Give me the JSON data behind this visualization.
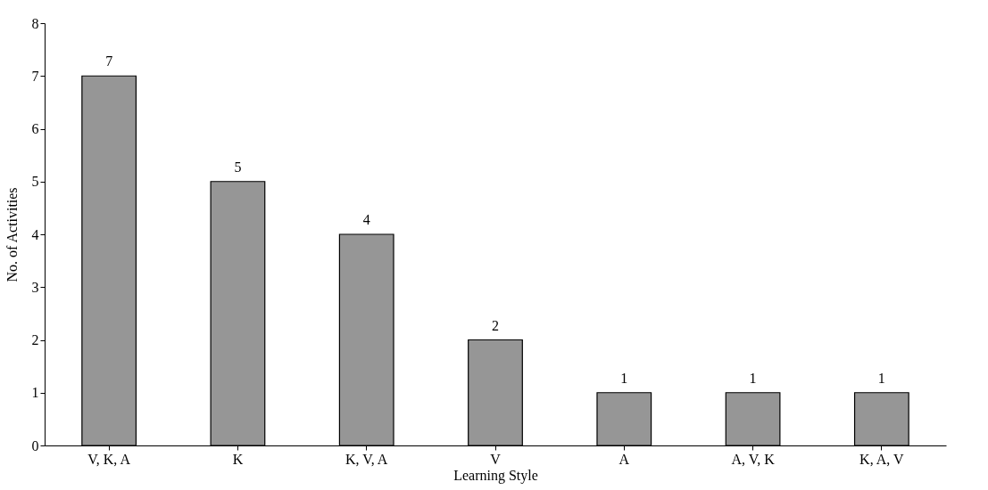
{
  "chart_data": {
    "type": "bar",
    "xlabel": "Learning Style",
    "ylabel": "No. of Activities",
    "categories": [
      "V, K, A",
      "K",
      "K, V, A",
      "V",
      "A",
      "A, V, K",
      "K, A, V"
    ],
    "values": [
      7,
      5,
      4,
      2,
      1,
      1,
      1
    ],
    "color": "#969696",
    "ylim": [
      0,
      8
    ],
    "yticks": [
      0,
      1,
      2,
      3,
      4,
      5,
      6,
      7,
      8
    ],
    "grid": false,
    "data_labels": true
  }
}
